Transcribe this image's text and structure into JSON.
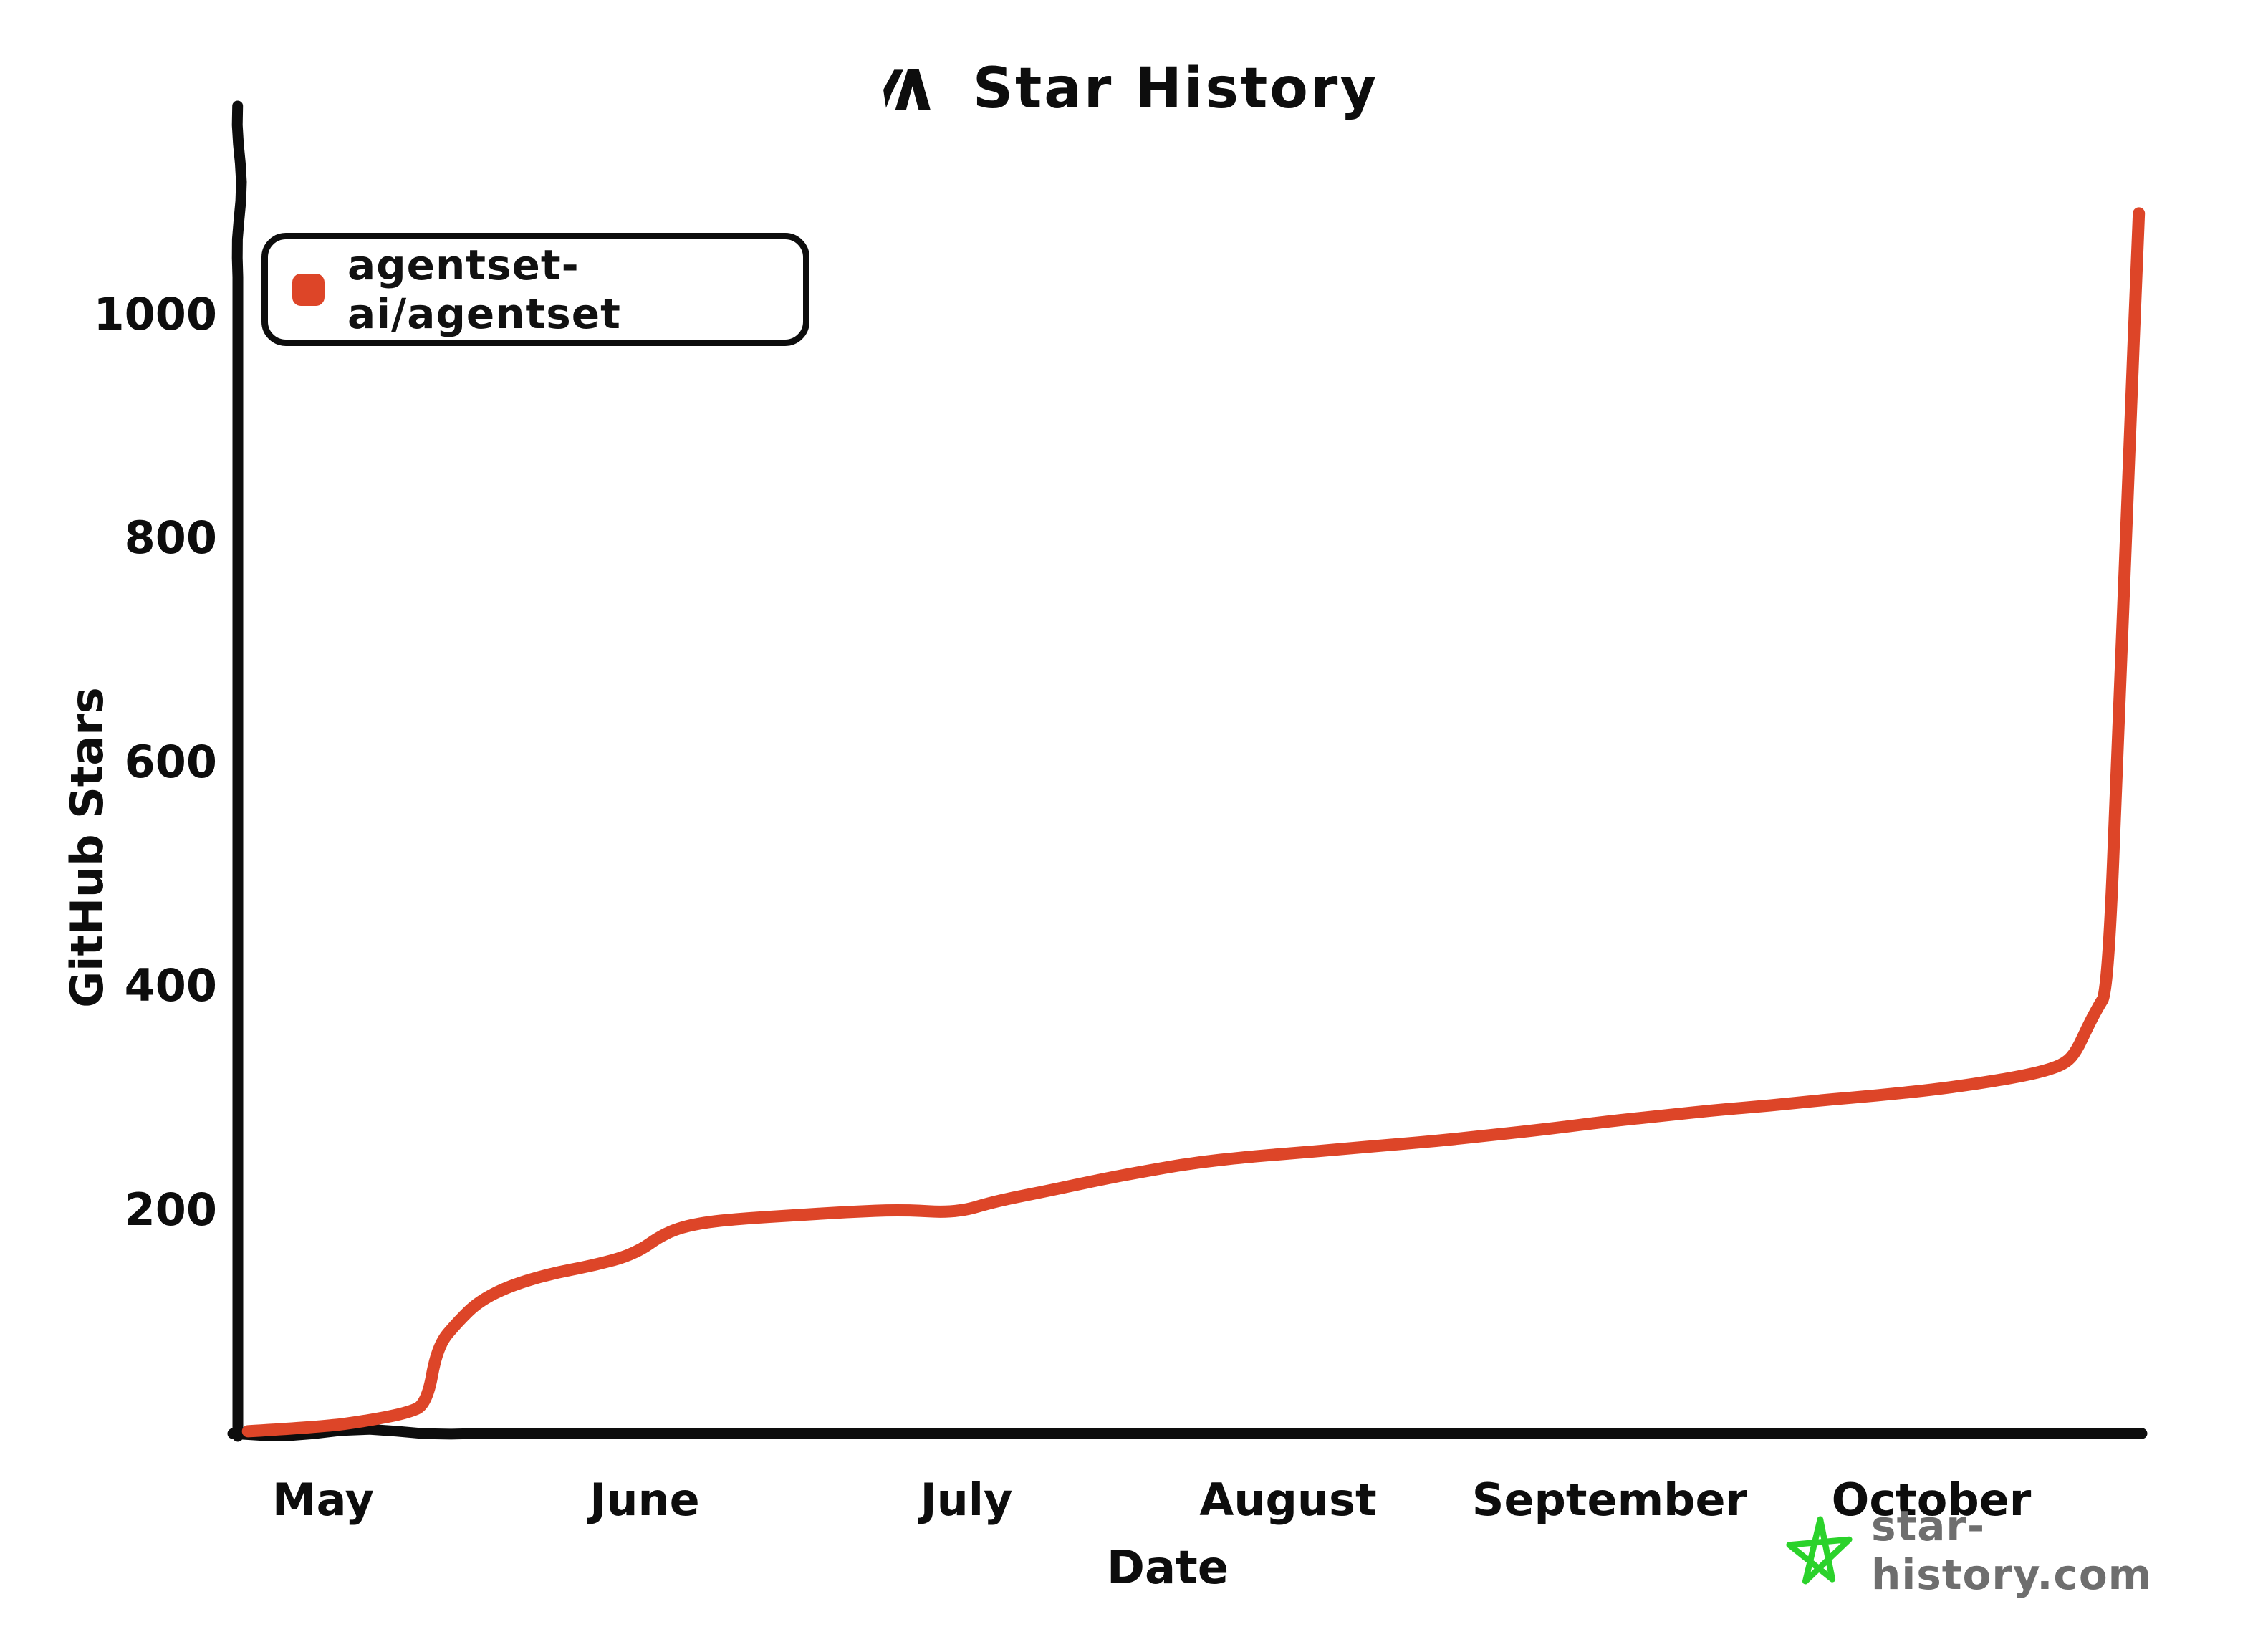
{
  "title": {
    "text": "Star History"
  },
  "legend": {
    "items": [
      {
        "label": "agentset-ai/agentset",
        "color": "#dd4528"
      }
    ]
  },
  "axes": {
    "xlabel": "Date",
    "ylabel": "GitHub Stars",
    "x_ticks": [
      "May",
      "June",
      "July",
      "August",
      "September",
      "October"
    ],
    "y_ticks": [
      200,
      400,
      600,
      800,
      1000
    ]
  },
  "watermark": {
    "text": "star-history.com",
    "star_color": "#2bd22b",
    "text_color": "#6e6e6e"
  },
  "colors": {
    "series": "#dd4528",
    "axis": "#0d0d0d",
    "background": "#ffffff"
  },
  "chart_data": {
    "type": "line",
    "title": "Star History",
    "xlabel": "Date",
    "ylabel": "GitHub Stars",
    "x_tick_labels": [
      "May",
      "June",
      "July",
      "August",
      "September",
      "October"
    ],
    "y_ticks": [
      200,
      400,
      600,
      800,
      1000
    ],
    "ylim": [
      0,
      1185
    ],
    "grid": false,
    "legend_position": "top-left",
    "series": [
      {
        "name": "agentset-ai/agentset",
        "color": "#dd4528",
        "points": [
          {
            "date": "Apr 24",
            "stars": 2
          },
          {
            "date": "May 1",
            "stars": 6
          },
          {
            "date": "May 5",
            "stars": 11
          },
          {
            "date": "May 9",
            "stars": 18
          },
          {
            "date": "May 11",
            "stars": 26
          },
          {
            "date": "May 12",
            "stars": 78
          },
          {
            "date": "May 14",
            "stars": 100
          },
          {
            "date": "May 16",
            "stars": 118
          },
          {
            "date": "May 19",
            "stars": 132
          },
          {
            "date": "May 23",
            "stars": 143
          },
          {
            "date": "May 27",
            "stars": 150
          },
          {
            "date": "May 31",
            "stars": 160
          },
          {
            "date": "Jun 3",
            "stars": 180
          },
          {
            "date": "Jun 6",
            "stars": 188
          },
          {
            "date": "Jun 10",
            "stars": 192
          },
          {
            "date": "Jun 15",
            "stars": 195
          },
          {
            "date": "Jun 20",
            "stars": 198
          },
          {
            "date": "Jun 25",
            "stars": 200
          },
          {
            "date": "Jun 30",
            "stars": 197
          },
          {
            "date": "Jul 4",
            "stars": 208
          },
          {
            "date": "Jul 9",
            "stars": 217
          },
          {
            "date": "Jul 14",
            "stars": 227
          },
          {
            "date": "Jul 18",
            "stars": 234
          },
          {
            "date": "Jul 23",
            "stars": 242
          },
          {
            "date": "Jul 28",
            "stars": 247
          },
          {
            "date": "Aug 1",
            "stars": 250
          },
          {
            "date": "Aug 6",
            "stars": 254
          },
          {
            "date": "Aug 11",
            "stars": 258
          },
          {
            "date": "Aug 16",
            "stars": 262
          },
          {
            "date": "Aug 21",
            "stars": 267
          },
          {
            "date": "Aug 26",
            "stars": 272
          },
          {
            "date": "Sep 1",
            "stars": 279
          },
          {
            "date": "Sep 6",
            "stars": 284
          },
          {
            "date": "Sep 11",
            "stars": 289
          },
          {
            "date": "Sep 16",
            "stars": 293
          },
          {
            "date": "Sep 21",
            "stars": 298
          },
          {
            "date": "Sep 26",
            "stars": 302
          },
          {
            "date": "Oct 1",
            "stars": 307
          },
          {
            "date": "Oct 5",
            "stars": 312
          },
          {
            "date": "Oct 9",
            "stars": 318
          },
          {
            "date": "Oct 12",
            "stars": 324
          },
          {
            "date": "Oct 14",
            "stars": 331
          },
          {
            "date": "Oct 15",
            "stars": 342
          },
          {
            "date": "Oct 16",
            "stars": 362
          },
          {
            "date": "Oct 17",
            "stars": 380
          },
          {
            "date": "Oct 18",
            "stars": 395
          },
          {
            "date": "Oct 19",
            "stars": 620
          },
          {
            "date": "Oct 20",
            "stars": 860
          },
          {
            "date": "Oct 21",
            "stars": 1090
          }
        ]
      }
    ]
  }
}
